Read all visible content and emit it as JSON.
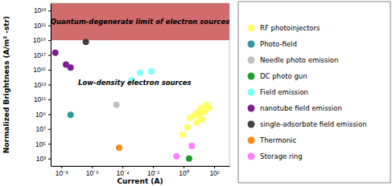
{
  "chart_data": {
    "type": "scatter",
    "x_label": "Current (A)",
    "y_label": "Normalized Brightness (A/m² -str)",
    "log": true,
    "marker": "circle",
    "legend": "right",
    "xlim": [
      2e-09,
      1000
    ],
    "ylim": [
      100,
      1e+24
    ],
    "xticks": [
      {
        "value": 1e-08,
        "label": "10⁻⁸"
      },
      {
        "value": 1e-06,
        "label": "10⁻⁶"
      },
      {
        "value": 0.0001,
        "label": "10⁻⁴"
      },
      {
        "value": 0.01,
        "label": "10⁻²"
      },
      {
        "value": 1,
        "label": "10⁰"
      },
      {
        "value": 100,
        "label": "10²"
      }
    ],
    "yticks": [
      {
        "value": 1000,
        "label": "10³"
      },
      {
        "value": 100000,
        "label": "10⁵"
      },
      {
        "value": 10000000,
        "label": "10⁷"
      },
      {
        "value": 1000000000,
        "label": "10⁹"
      },
      {
        "value": 100000000000.0,
        "label": "10¹¹"
      },
      {
        "value": 10000000000000.0,
        "label": "10¹³"
      },
      {
        "value": 1000000000000000.0,
        "label": "10¹⁵"
      },
      {
        "value": 1e+17,
        "label": "10¹⁷"
      },
      {
        "value": 1e+19,
        "label": "10¹⁹"
      },
      {
        "value": 1e+21,
        "label": "10²¹"
      },
      {
        "value": 1e+23,
        "label": "10²³"
      }
    ],
    "annotations": [
      {
        "text": "Quantum-degenerate limit of electron sources",
        "ymin": 1e+19
      },
      {
        "text": "Low-density electron sources"
      }
    ],
    "series": [
      {
        "name": "RF photoinjectors",
        "color": "#ffff66",
        "x": [
          30,
          15,
          48,
          9,
          23,
          5,
          11,
          2.6,
          16,
          7,
          1.8,
          0.9
        ],
        "values": [
          18000000000.0,
          7000000000.0,
          7000000000.0,
          2000000000.0,
          2000000000.0,
          800000000.0,
          500000000.0,
          300000000.0,
          180000000.0,
          70000000.0,
          16000000.0,
          1800000.0
        ]
      },
      {
        "name": "Photo-field",
        "color": "#339999",
        "x": [
          4e-08
        ],
        "values": [
          800000000.0
        ]
      },
      {
        "name": "Needle photo emission",
        "color": "#c0c0c0",
        "x": [
          4e-05
        ],
        "values": [
          18000000000.0
        ]
      },
      {
        "name": "DC photo gun",
        "color": "#1f9e2f",
        "x": [
          2.3
        ],
        "values": [
          1000
        ]
      },
      {
        "name": "Field emission",
        "color": "#80ffff",
        "x": [
          0.0004,
          0.0014,
          0.008
        ],
        "values": [
          40000000000000.0,
          400000000000000.0,
          600000000000000.0
        ]
      },
      {
        "name": "nanotube field emission",
        "color": "#7f1f8f",
        "x": [
          4e-09,
          2e-08,
          4e-08
        ],
        "values": [
          2e+17,
          5000000000000000.0,
          2000000000000000.0
        ]
      },
      {
        "name": "single-adsorbate field emission",
        "color": "#404040",
        "x": [
          4e-07
        ],
        "values": [
          6e+18
        ]
      },
      {
        "name": "Thermonic",
        "color": "#ff8c1a",
        "x": [
          6e-05
        ],
        "values": [
          30000
        ]
      },
      {
        "name": "Storage ring",
        "color": "#ff80ff",
        "x": [
          0.34,
          3.4
        ],
        "values": [
          2000,
          50000
        ]
      }
    ]
  }
}
